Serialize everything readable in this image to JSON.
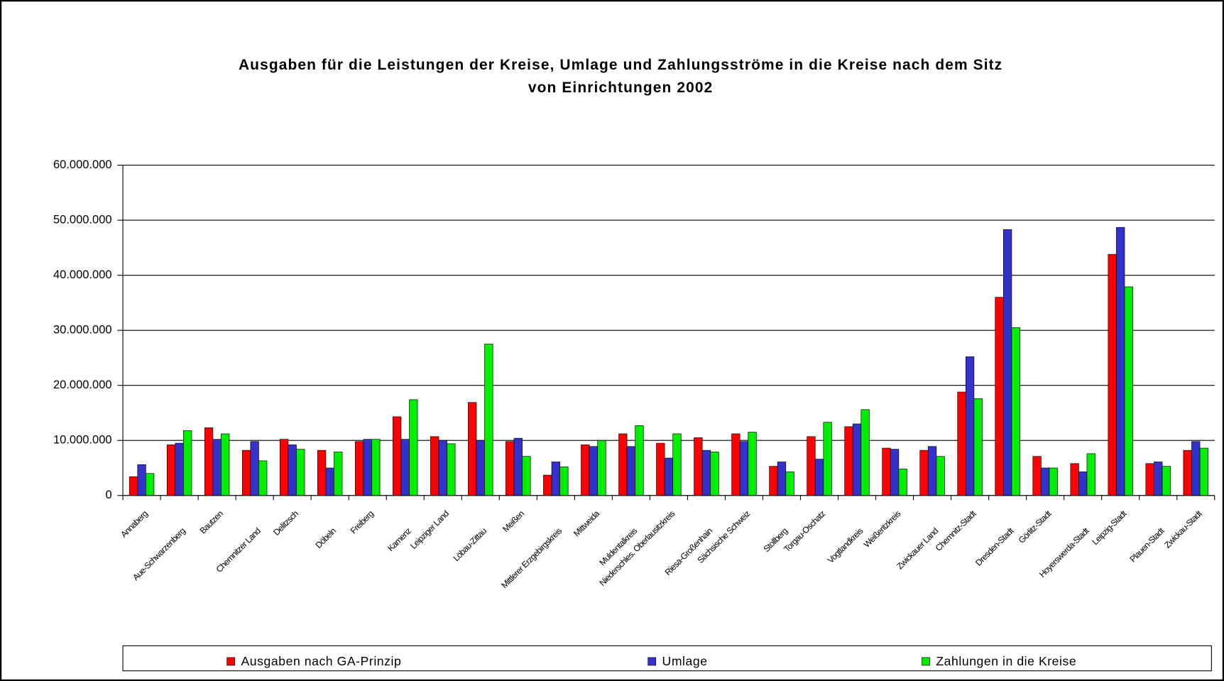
{
  "chart_data": {
    "type": "bar",
    "title": [
      "Ausgaben für die Leistungen der Kreise, Umlage und Zahlungsströme in die Kreise nach dem Sitz",
      "von Einrichtungen 2002"
    ],
    "categories": [
      "Annaberg",
      "Aue-Schwarzenberg",
      "Bautzen",
      "Chemnitzer Land",
      "Delitzsch",
      "Döbeln",
      "Freiberg",
      "Kamenz",
      "Leipziger Land",
      "Löbau-Zittau",
      "Meißen",
      "Mittlerer Erzgebirgskreis",
      "Mittweida",
      "Muldentalkreis",
      "Niederschles. Oberlausitzkreis",
      "Riesa-Großenhain",
      "Sächsische Schweiz",
      "Stollberg",
      "Torgau-Oschatz",
      "Vogtlandkreis",
      "Weißeritzkreis",
      "Zwickauer Land",
      "Chemnitz-Stadt",
      "Dresden-Stadt",
      "Görlitz-Stadt",
      "Hoyerswerda-Stadt",
      "Leipzig-Stadt",
      "Plauen-Stadt",
      "Zwickau-Stadt"
    ],
    "series": [
      {
        "name": "Ausgaben nach GA-Prinzip",
        "color": "#ff0000",
        "values": [
          3400000,
          9200000,
          12300000,
          8200000,
          10200000,
          8200000,
          9800000,
          14300000,
          10700000,
          16900000,
          9800000,
          3700000,
          9200000,
          11200000,
          9500000,
          10500000,
          11200000,
          5300000,
          10700000,
          12500000,
          8600000,
          8200000,
          18800000,
          36000000,
          7100000,
          5800000,
          43800000,
          5800000,
          8200000
        ]
      },
      {
        "name": "Umlage",
        "color": "#3333cc",
        "values": [
          5600000,
          9500000,
          10200000,
          9800000,
          9200000,
          5000000,
          10200000,
          10200000,
          10000000,
          10000000,
          10400000,
          6100000,
          8900000,
          8900000,
          6800000,
          8200000,
          9800000,
          6100000,
          6600000,
          13000000,
          8400000,
          8900000,
          25200000,
          48300000,
          5000000,
          4300000,
          48700000,
          6100000,
          9800000
        ]
      },
      {
        "name": "Zahlungen in die Kreise",
        "color": "#00ee00",
        "values": [
          4000000,
          11800000,
          11200000,
          6300000,
          8400000,
          7900000,
          10200000,
          17400000,
          9400000,
          27500000,
          7100000,
          5200000,
          10000000,
          12700000,
          11200000,
          7900000,
          11500000,
          4300000,
          13300000,
          15600000,
          4800000,
          7100000,
          17600000,
          30500000,
          5000000,
          7600000,
          37900000,
          5300000,
          8600000
        ]
      }
    ],
    "ylim": [
      0,
      60000000
    ],
    "yticks": [
      {
        "value": 0,
        "label": "0"
      },
      {
        "value": 10000000,
        "label": "10.000.000"
      },
      {
        "value": 20000000,
        "label": "20.000.000"
      },
      {
        "value": 30000000,
        "label": "30.000.000"
      },
      {
        "value": 40000000,
        "label": "40.000.000"
      },
      {
        "value": 50000000,
        "label": "50.000.000"
      },
      {
        "value": 60000000,
        "label": "60.000.000"
      }
    ],
    "grid": true,
    "legend": "bottom"
  }
}
